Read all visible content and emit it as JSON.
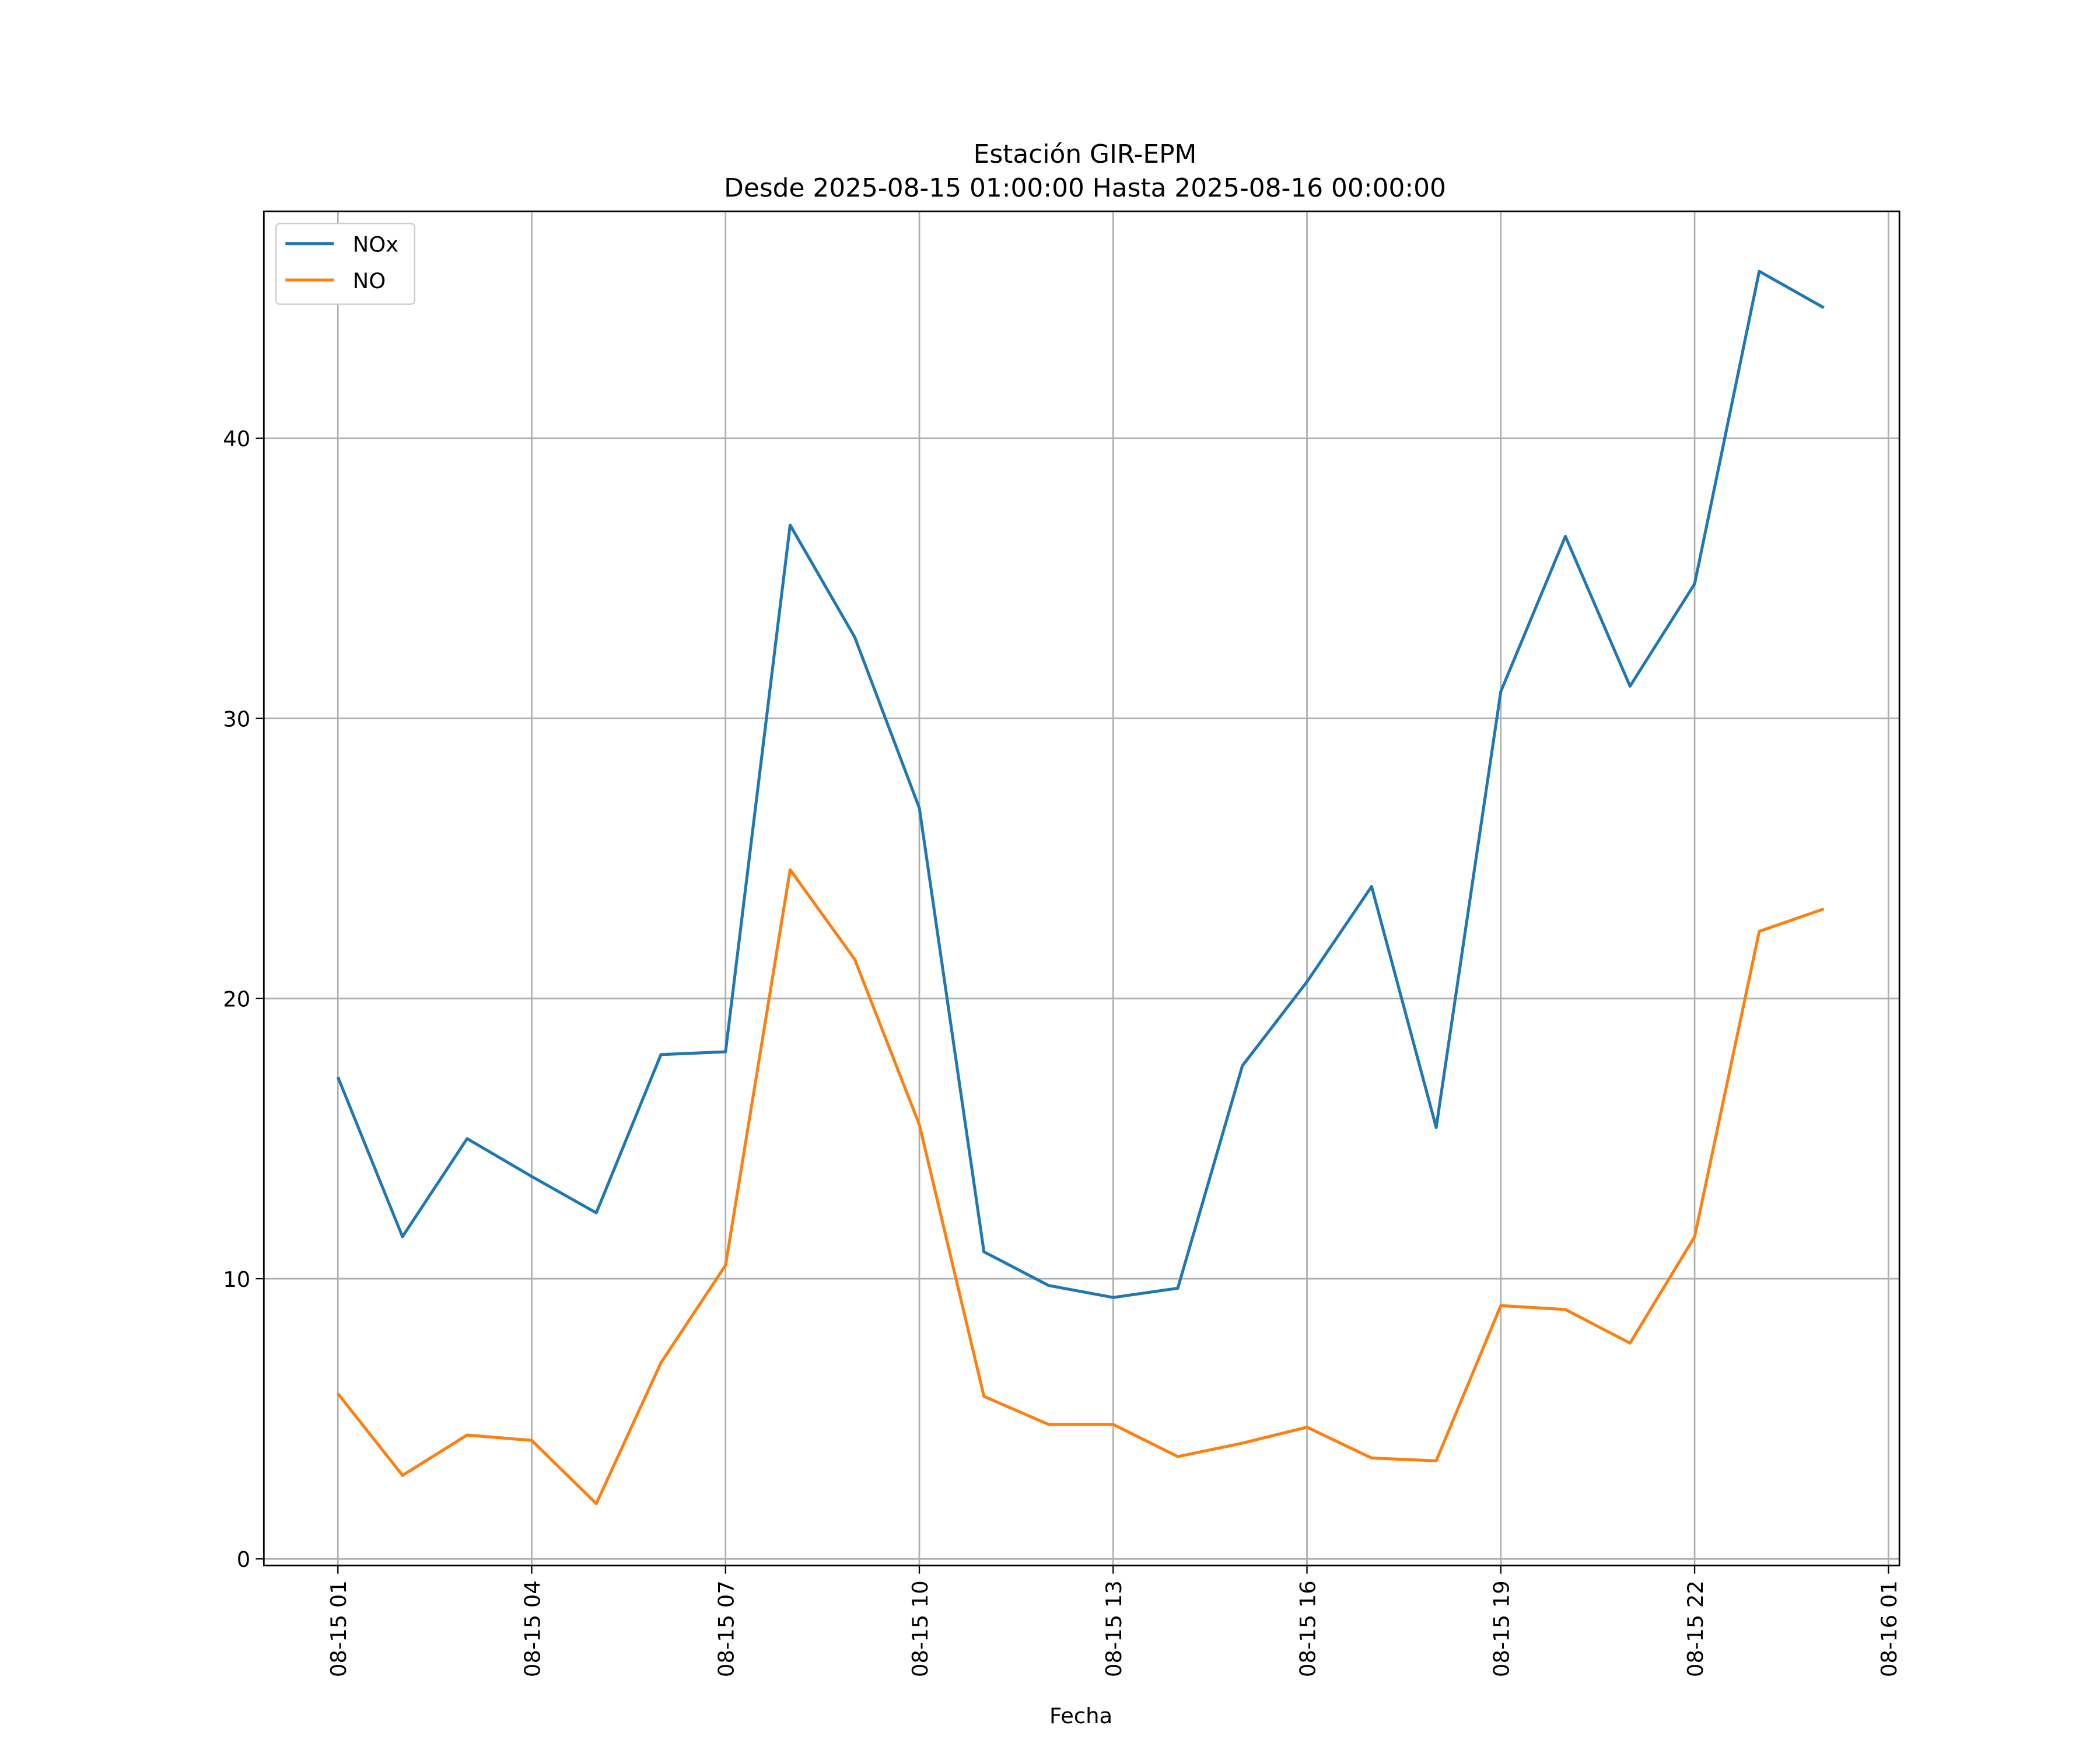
{
  "chart_data": {
    "type": "line",
    "title": "Estación GIR-EPM",
    "subtitle": "Desde 2025-08-15 01:00:00 Hasta 2025-08-16 00:00:00",
    "xlabel": "Fecha",
    "ylabel": "",
    "x_hours": [
      1,
      2,
      3,
      4,
      5,
      6,
      7,
      8,
      9,
      10,
      11,
      12,
      13,
      14,
      15,
      16,
      17,
      18,
      19,
      20,
      21,
      22,
      23,
      24
    ],
    "xlim_hours": [
      -0.146,
      25.17
    ],
    "ylim": [
      -0.24,
      48.1
    ],
    "grid": true,
    "legend_position": "top-left",
    "xticks": [
      {
        "hour": 1,
        "label": "08-15 01"
      },
      {
        "hour": 4,
        "label": "08-15 04"
      },
      {
        "hour": 7,
        "label": "08-15 07"
      },
      {
        "hour": 10,
        "label": "08-15 10"
      },
      {
        "hour": 13,
        "label": "08-15 13"
      },
      {
        "hour": 16,
        "label": "08-15 16"
      },
      {
        "hour": 19,
        "label": "08-15 19"
      },
      {
        "hour": 22,
        "label": "08-15 22"
      },
      {
        "hour": 25,
        "label": "08-16 01"
      }
    ],
    "yticks": [
      {
        "value": 0,
        "label": "0"
      },
      {
        "value": 10,
        "label": "10"
      },
      {
        "value": 20,
        "label": "20"
      },
      {
        "value": 30,
        "label": "30"
      },
      {
        "value": 40,
        "label": "40"
      }
    ],
    "series": [
      {
        "name": "NOx",
        "color": "#1f77b4",
        "values": [
          17.2,
          11.5,
          15.0,
          13.65,
          12.35,
          18.0,
          18.1,
          36.9,
          32.9,
          26.8,
          10.96,
          9.76,
          9.33,
          9.66,
          17.6,
          20.6,
          24.0,
          15.4,
          30.96,
          36.5,
          31.15,
          34.8,
          45.96,
          44.66
        ]
      },
      {
        "name": "NO",
        "color": "#ff7f0e",
        "values": [
          5.9,
          2.98,
          4.42,
          4.23,
          1.97,
          7.0,
          10.48,
          24.6,
          21.4,
          15.5,
          5.8,
          4.8,
          4.8,
          3.65,
          4.13,
          4.7,
          3.6,
          3.5,
          9.04,
          8.9,
          7.7,
          11.5,
          22.4,
          23.2
        ]
      }
    ]
  }
}
